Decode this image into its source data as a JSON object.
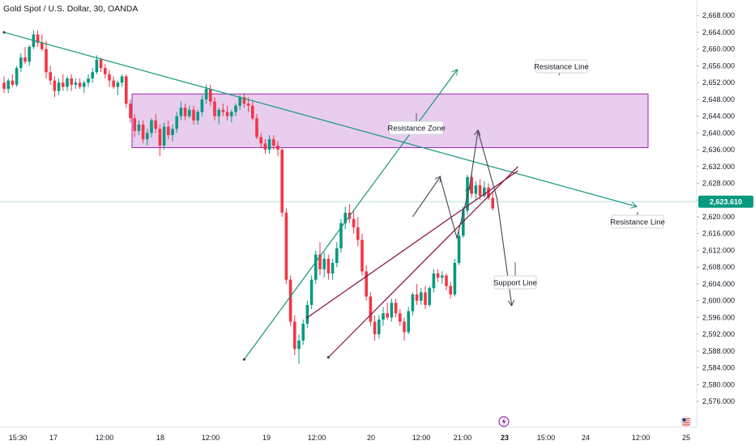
{
  "header": {
    "title": "Gold Spot / U.S. Dollar, 30, OANDA"
  },
  "chart_data": {
    "type": "candlestick",
    "title": "Gold Spot / U.S. Dollar, 30, OANDA",
    "y_ticks": [
      "2,668.000",
      "2,664.000",
      "2,660.000",
      "2,656.000",
      "2,652.000",
      "2,648.000",
      "2,644.000",
      "2,640.000",
      "2,636.000",
      "2,632.000",
      "2,628.000",
      "2,624.000",
      "2,620.000",
      "2,616.000",
      "2,612.000",
      "2,608.000",
      "2,604.000",
      "2,600.000",
      "2,596.000",
      "2,592.000",
      "2,588.000",
      "2,584.000",
      "2,580.000",
      "2,576.000"
    ],
    "ylim": [
      2573.5,
      2669.2
    ],
    "x_ticks": [
      "15:30",
      "17",
      "12:00",
      "18",
      "12:00",
      "19",
      "12:00",
      "20",
      "12:00",
      "21:00",
      "23",
      "15:00",
      "24",
      "12:00",
      "25"
    ],
    "current_price": "2,623.610",
    "current_price_value": 2623.61,
    "colors": {
      "up": "#089981",
      "down": "#f23645",
      "zone_fill": "#e8cdee",
      "zone_border": "#9c27b0",
      "trend_green": "#15977a",
      "channel_red": "#880e3c",
      "price_badge": "#089981"
    },
    "resistance_zone": {
      "low": 2636.5,
      "high": 2649.3
    },
    "annotations": {
      "resistance_line_top": "Resistance Line",
      "resistance_zone": "Resistance Zone",
      "resistance_line_right": "Resistance Line",
      "support_line": "Support Line"
    },
    "candles": [
      [
        2652.0,
        2653.5,
        2649.5,
        2650.5
      ],
      [
        2650.5,
        2653.0,
        2649.5,
        2652.5
      ],
      [
        2652.5,
        2654.0,
        2651.0,
        2651.5
      ],
      [
        2651.5,
        2656.0,
        2651.0,
        2655.5
      ],
      [
        2655.5,
        2659.0,
        2654.5,
        2658.0
      ],
      [
        2658.0,
        2660.5,
        2656.5,
        2657.0
      ],
      [
        2657.0,
        2661.0,
        2656.0,
        2660.5
      ],
      [
        2660.5,
        2664.5,
        2660.0,
        2663.5
      ],
      [
        2663.5,
        2664.5,
        2660.5,
        2661.5
      ],
      [
        2661.5,
        2663.5,
        2659.5,
        2660.0
      ],
      [
        2660.0,
        2662.0,
        2653.0,
        2654.5
      ],
      [
        2654.5,
        2656.0,
        2651.5,
        2652.5
      ],
      [
        2652.5,
        2653.5,
        2648.5,
        2650.0
      ],
      [
        2650.0,
        2653.0,
        2649.0,
        2652.0
      ],
      [
        2652.0,
        2654.0,
        2650.0,
        2651.0
      ],
      [
        2651.0,
        2653.5,
        2650.0,
        2653.0
      ],
      [
        2653.0,
        2654.0,
        2650.0,
        2651.5
      ],
      [
        2651.5,
        2653.0,
        2650.5,
        2652.0
      ],
      [
        2652.0,
        2653.0,
        2650.5,
        2651.0
      ],
      [
        2651.0,
        2652.5,
        2649.5,
        2652.0
      ],
      [
        2652.0,
        2654.0,
        2651.0,
        2653.0
      ],
      [
        2653.0,
        2655.5,
        2652.0,
        2654.5
      ],
      [
        2654.5,
        2658.5,
        2654.0,
        2657.5
      ],
      [
        2657.5,
        2658.0,
        2654.5,
        2655.5
      ],
      [
        2655.5,
        2656.5,
        2653.0,
        2654.0
      ],
      [
        2654.0,
        2655.0,
        2651.0,
        2652.5
      ],
      [
        2652.5,
        2653.5,
        2650.5,
        2651.0
      ],
      [
        2651.0,
        2652.5,
        2649.0,
        2652.0
      ],
      [
        2652.0,
        2654.0,
        2651.0,
        2653.5
      ],
      [
        2653.5,
        2654.0,
        2646.0,
        2647.0
      ],
      [
        2647.0,
        2648.0,
        2642.5,
        2643.5
      ],
      [
        2643.5,
        2644.5,
        2639.0,
        2640.5
      ],
      [
        2640.5,
        2643.0,
        2639.5,
        2642.0
      ],
      [
        2642.0,
        2643.0,
        2637.5,
        2638.5
      ],
      [
        2638.5,
        2641.0,
        2637.0,
        2640.0
      ],
      [
        2640.0,
        2643.5,
        2639.0,
        2643.0
      ],
      [
        2643.0,
        2644.5,
        2640.0,
        2641.0
      ],
      [
        2641.0,
        2642.0,
        2634.5,
        2637.0
      ],
      [
        2637.0,
        2642.5,
        2636.0,
        2641.5
      ],
      [
        2641.5,
        2643.0,
        2638.5,
        2639.5
      ],
      [
        2639.5,
        2642.0,
        2638.0,
        2641.0
      ],
      [
        2641.0,
        2645.0,
        2640.0,
        2644.0
      ],
      [
        2644.0,
        2647.5,
        2643.0,
        2646.0
      ],
      [
        2646.0,
        2647.0,
        2643.0,
        2644.0
      ],
      [
        2644.0,
        2646.5,
        2643.5,
        2645.5
      ],
      [
        2645.5,
        2646.5,
        2642.0,
        2643.0
      ],
      [
        2643.0,
        2645.5,
        2642.0,
        2645.0
      ],
      [
        2645.0,
        2649.0,
        2644.0,
        2648.0
      ],
      [
        2648.0,
        2651.5,
        2647.0,
        2650.5
      ],
      [
        2650.5,
        2651.5,
        2646.5,
        2647.5
      ],
      [
        2647.5,
        2648.5,
        2643.0,
        2644.0
      ],
      [
        2644.0,
        2646.0,
        2642.0,
        2645.5
      ],
      [
        2645.5,
        2647.0,
        2644.0,
        2645.0
      ],
      [
        2645.0,
        2646.5,
        2643.0,
        2644.0
      ],
      [
        2644.0,
        2645.5,
        2642.5,
        2645.0
      ],
      [
        2645.0,
        2647.0,
        2644.0,
        2646.5
      ],
      [
        2646.5,
        2649.0,
        2645.5,
        2648.5
      ],
      [
        2648.5,
        2649.5,
        2646.0,
        2647.0
      ],
      [
        2647.0,
        2648.5,
        2645.0,
        2646.5
      ],
      [
        2646.5,
        2647.5,
        2643.0,
        2643.5
      ],
      [
        2643.5,
        2644.5,
        2638.5,
        2639.0
      ],
      [
        2639.0,
        2640.0,
        2636.5,
        2637.5
      ],
      [
        2637.5,
        2638.5,
        2635.0,
        2636.0
      ],
      [
        2636.0,
        2639.5,
        2635.0,
        2638.5
      ],
      [
        2638.5,
        2639.5,
        2636.0,
        2637.0
      ],
      [
        2637.0,
        2638.0,
        2634.5,
        2636.0
      ],
      [
        2636.0,
        2636.5,
        2620.0,
        2621.0
      ],
      [
        2621.0,
        2622.0,
        2604.0,
        2605.0
      ],
      [
        2605.0,
        2606.0,
        2594.0,
        2595.0
      ],
      [
        2595.0,
        2596.5,
        2587.0,
        2588.5
      ],
      [
        2588.5,
        2592.0,
        2585.0,
        2590.5
      ],
      [
        2590.5,
        2595.5,
        2589.5,
        2594.5
      ],
      [
        2594.5,
        2600.0,
        2593.5,
        2599.0
      ],
      [
        2599.0,
        2606.0,
        2598.0,
        2605.0
      ],
      [
        2605.0,
        2612.0,
        2604.0,
        2611.0
      ],
      [
        2611.0,
        2614.0,
        2606.0,
        2607.5
      ],
      [
        2607.5,
        2611.5,
        2605.5,
        2610.0
      ],
      [
        2610.0,
        2611.0,
        2605.0,
        2606.5
      ],
      [
        2606.5,
        2610.0,
        2605.0,
        2609.0
      ],
      [
        2609.0,
        2614.0,
        2608.0,
        2612.5
      ],
      [
        2612.5,
        2619.5,
        2611.5,
        2618.5
      ],
      [
        2618.5,
        2622.5,
        2617.0,
        2621.0
      ],
      [
        2621.0,
        2623.0,
        2618.5,
        2619.5
      ],
      [
        2619.5,
        2621.5,
        2616.0,
        2617.5
      ],
      [
        2617.5,
        2620.0,
        2613.0,
        2614.5
      ],
      [
        2614.5,
        2616.0,
        2606.0,
        2607.0
      ],
      [
        2607.0,
        2608.5,
        2600.0,
        2601.0
      ],
      [
        2601.0,
        2602.0,
        2594.0,
        2595.0
      ],
      [
        2595.0,
        2596.5,
        2590.5,
        2592.0
      ],
      [
        2592.0,
        2596.5,
        2591.0,
        2595.5
      ],
      [
        2595.5,
        2598.5,
        2594.0,
        2597.0
      ],
      [
        2597.0,
        2599.5,
        2595.5,
        2596.0
      ],
      [
        2596.0,
        2600.5,
        2595.0,
        2599.5
      ],
      [
        2599.5,
        2600.5,
        2596.0,
        2597.0
      ],
      [
        2597.0,
        2598.0,
        2594.0,
        2595.0
      ],
      [
        2595.0,
        2596.0,
        2590.5,
        2592.5
      ],
      [
        2592.5,
        2598.5,
        2592.0,
        2597.5
      ],
      [
        2597.5,
        2602.0,
        2596.5,
        2601.5
      ],
      [
        2601.5,
        2604.0,
        2599.0,
        2600.0
      ],
      [
        2600.0,
        2603.0,
        2599.0,
        2602.0
      ],
      [
        2602.0,
        2603.5,
        2598.0,
        2599.0
      ],
      [
        2599.0,
        2603.5,
        2598.5,
        2603.0
      ],
      [
        2603.0,
        2607.5,
        2602.0,
        2606.5
      ],
      [
        2606.5,
        2607.5,
        2604.5,
        2605.5
      ],
      [
        2605.5,
        2607.0,
        2604.0,
        2606.0
      ],
      [
        2606.0,
        2606.5,
        2602.5,
        2603.5
      ],
      [
        2603.5,
        2604.5,
        2600.5,
        2601.5
      ],
      [
        2601.5,
        2610.0,
        2601.0,
        2609.0
      ],
      [
        2609.0,
        2616.5,
        2608.5,
        2615.5
      ],
      [
        2615.5,
        2622.5,
        2615.0,
        2621.5
      ],
      [
        2621.5,
        2630.0,
        2620.5,
        2629.5
      ],
      [
        2629.5,
        2630.5,
        2624.5,
        2625.5
      ],
      [
        2625.5,
        2628.5,
        2624.0,
        2627.5
      ],
      [
        2627.5,
        2629.0,
        2624.0,
        2625.0
      ],
      [
        2625.0,
        2628.5,
        2624.5,
        2627.0
      ],
      [
        2627.0,
        2628.0,
        2624.0,
        2624.5
      ],
      [
        2624.5,
        2626.0,
        2621.5,
        2622.0
      ]
    ],
    "drawings": {
      "resistance_trendline": [
        [
          0,
          2664.0
        ],
        [
          150,
          2622.5
        ]
      ],
      "green_trendline": [
        [
          57,
          2586.0
        ],
        [
          107.5,
          2655.0
        ]
      ],
      "channel_upper": [
        [
          72,
          2596.0
        ],
        [
          122,
          2631.0
        ]
      ],
      "channel_lower": [
        [
          77,
          2586.5
        ],
        [
          122,
          2632.0
        ]
      ],
      "projection_path": [
        [
          97,
          2620.0
        ],
        [
          103.5,
          2629.5
        ],
        [
          107.5,
          2615.0
        ],
        [
          110.5,
          2627.0
        ],
        [
          112.5,
          2640.5
        ],
        [
          117,
          2624.5
        ],
        [
          120.5,
          2599.0
        ]
      ]
    }
  }
}
